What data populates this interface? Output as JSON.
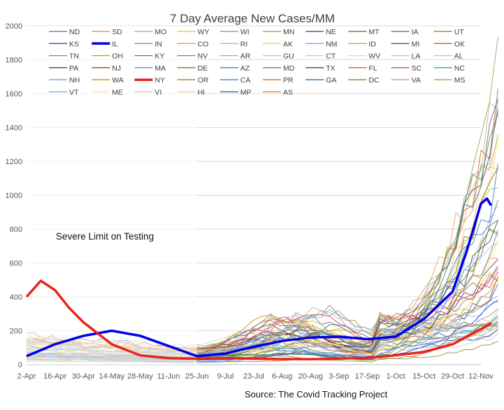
{
  "chart_data": {
    "type": "line",
    "title": "7 Day Average New Cases/MM",
    "source": "Source: The Covid Tracking Project",
    "annotation": "Severe Limit on Testing",
    "xlabel": "",
    "ylabel": "",
    "ylim": [
      0,
      2000
    ],
    "yticks": [
      0,
      200,
      400,
      600,
      800,
      1000,
      1200,
      1400,
      1600,
      1800,
      2000
    ],
    "xticks": [
      "2-Apr",
      "16-Apr",
      "30-Apr",
      "14-May",
      "28-May",
      "11-Jun",
      "25-Jun",
      "9-Jul",
      "23-Jul",
      "6-Aug",
      "20-Aug",
      "3-Sep",
      "17-Sep",
      "1-Oct",
      "15-Oct",
      "29-Oct",
      "12-Nov"
    ],
    "legend_position": "top",
    "legend_rows": [
      [
        "ND",
        "SD",
        "MO",
        "WY",
        "WI",
        "MN",
        "NE",
        "MT",
        "IA",
        "UT"
      ],
      [
        "KS",
        "IL",
        "IN",
        "CO",
        "RI",
        "AK",
        "NM",
        "ID",
        "MI",
        "OK"
      ],
      [
        "TN",
        "OH",
        "KY",
        "NV",
        "AR",
        "GU",
        "CT",
        "WV",
        "LA",
        "AL"
      ],
      [
        "PA",
        "NJ",
        "MA",
        "DE",
        "AZ",
        "MD",
        "TX",
        "FL",
        "SC",
        "NC"
      ],
      [
        "NH",
        "WA",
        "NY",
        "OR",
        "CA",
        "PR",
        "GA",
        "DC",
        "VA",
        "MS"
      ],
      [
        "VT",
        "ME",
        "VI",
        "HI",
        "MP",
        "AS"
      ]
    ],
    "legend_colors": [
      [
        "#4472c4",
        "#ed7d31",
        "#a5a5a5",
        "#ffc000",
        "#5b9bd5",
        "#70ad47",
        "#264478",
        "#9e480e",
        "#636363",
        "#997300"
      ],
      [
        "#255e91",
        "#0000e6",
        "#698ed0",
        "#f1975a",
        "#b7b7b7",
        "#ffcd33",
        "#7cafdd",
        "#8cc168",
        "#335aa1",
        "#d26012"
      ],
      [
        "#848484",
        "#cc9a00",
        "#3a75b6",
        "#5d9a36",
        "#8faadc",
        "#f4b183",
        "#c9c9c9",
        "#ffd966",
        "#9dc3e6",
        "#a9d18e"
      ],
      [
        "#1f3864",
        "#843c0c",
        "#7f7f7f",
        "#7f6000",
        "#2e75b6",
        "#548235",
        "#203864",
        "#c55a11",
        "#cc3399",
        "#2f9090"
      ],
      [
        "#6f9fd8",
        "#bf9000",
        "#e8241a",
        "#a97b30",
        "#4a7ebb",
        "#e46c0a",
        "#2d6c9f",
        "#6a8f3a",
        "#8ea9db",
        "#b19f4a"
      ],
      [
        "#7fa6d6",
        "#ffe699",
        "#b4c7e7",
        "#f8cbad",
        "#2f5597",
        "#d9822b"
      ]
    ],
    "highlighted_series": [
      {
        "name": "IL",
        "color": "#0000e6",
        "x": [
          "2-Apr",
          "16-Apr",
          "30-Apr",
          "14-May",
          "28-May",
          "11-Jun",
          "25-Jun",
          "9-Jul",
          "23-Jul",
          "6-Aug",
          "20-Aug",
          "3-Sep",
          "17-Sep",
          "1-Oct",
          "15-Oct",
          "29-Oct",
          "5-Nov",
          "12-Nov",
          "15-Nov",
          "17-Nov"
        ],
        "values": [
          50,
          120,
          170,
          200,
          170,
          110,
          50,
          65,
          105,
          140,
          160,
          165,
          150,
          165,
          270,
          430,
          670,
          950,
          980,
          940
        ]
      },
      {
        "name": "NY",
        "color": "#e8241a",
        "x": [
          "2-Apr",
          "9-Apr",
          "16-Apr",
          "23-Apr",
          "30-Apr",
          "14-May",
          "28-May",
          "11-Jun",
          "25-Jun",
          "9-Jul",
          "23-Jul",
          "6-Aug",
          "20-Aug",
          "3-Sep",
          "17-Sep",
          "1-Oct",
          "15-Oct",
          "29-Oct",
          "12-Nov",
          "17-Nov"
        ],
        "values": [
          400,
          495,
          440,
          335,
          250,
          120,
          55,
          38,
          35,
          38,
          35,
          33,
          32,
          35,
          40,
          55,
          75,
          120,
          210,
          245
        ]
      }
    ],
    "background_series_count": 54,
    "background_series_note_range": [
      0,
      1800
    ]
  }
}
